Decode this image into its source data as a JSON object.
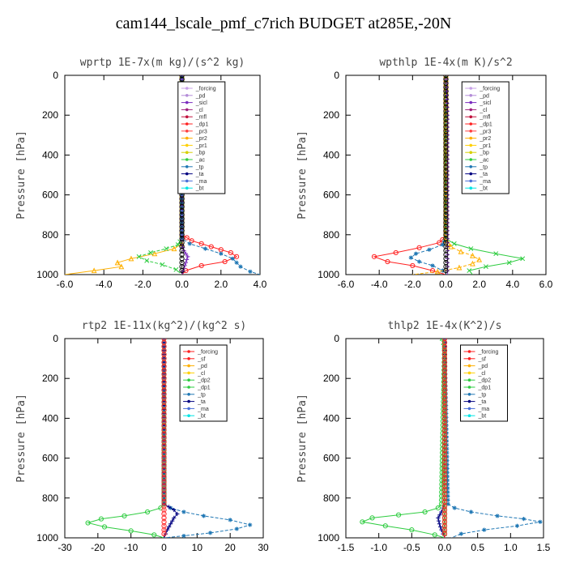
{
  "figure_title": "cam144_lscale_pmf_c7rich  BUDGET at285E,-20N",
  "chart_data": [
    {
      "type": "line",
      "title": "wprtp  1E-7x(m kg)/(s^2 kg)",
      "ylabel": "Pressure [hPa]",
      "xlim": [
        -6.0,
        4.0
      ],
      "ylim": [
        1000,
        0
      ],
      "xticks": [
        "-6.0",
        "-4.0",
        "-2.0",
        "0.0",
        "2.0",
        "4.0"
      ],
      "yticks": [
        "0",
        "200",
        "400",
        "600",
        "800",
        "1000"
      ],
      "legend": [
        "_forcing",
        "_pd",
        "_sicl",
        "_cl",
        "_mfl",
        "_dp1",
        "_pr3",
        "_pr2",
        "_pr1",
        "_bp",
        "_ac",
        "_tp",
        "_ta",
        "_ma",
        "_bt"
      ],
      "series": [
        {
          "color": "#ffb000",
          "marker": "^",
          "x": [
            0,
            0,
            0,
            -0.4,
            -1.4,
            -2.6,
            -3.3,
            -3.1,
            -4.5,
            -6.0
          ],
          "y": [
            0,
            820,
            845,
            870,
            895,
            920,
            940,
            960,
            980,
            1000
          ]
        },
        {
          "color": "#2ecc40",
          "marker": "x",
          "x": [
            0,
            0,
            -0.2,
            -0.8,
            -1.6,
            -2.2,
            -1.8,
            -1.0,
            -0.3,
            0
          ],
          "y": [
            0,
            820,
            850,
            870,
            890,
            910,
            930,
            950,
            975,
            1000
          ]
        },
        {
          "color": "#ff2020",
          "marker": "o",
          "x": [
            0,
            0,
            0.5,
            1.5,
            2.5,
            2.8,
            2.2,
            1.0,
            0.2,
            0
          ],
          "y": [
            0,
            800,
            830,
            860,
            890,
            910,
            935,
            955,
            980,
            1000
          ]
        },
        {
          "color": "#1f77b4",
          "marker": "*",
          "x": [
            0,
            0,
            0.4,
            1.2,
            2.0,
            2.6,
            2.8,
            3.0,
            3.5,
            4.0
          ],
          "y": [
            0,
            820,
            845,
            870,
            895,
            920,
            940,
            960,
            985,
            1000
          ]
        },
        {
          "color": "#7b2cbf",
          "marker": "+",
          "x": [
            0,
            0,
            0.1,
            0.3,
            0.2,
            0.1,
            0
          ],
          "y": [
            0,
            850,
            880,
            910,
            940,
            970,
            1000
          ]
        },
        {
          "color": "#000000",
          "marker": "o",
          "x": [
            0,
            0,
            0,
            0,
            0,
            0,
            0
          ],
          "y": [
            0,
            200,
            400,
            600,
            800,
            900,
            1000
          ]
        }
      ]
    },
    {
      "type": "line",
      "title": "wpthlp  1E-4x(m K)/s^2",
      "ylabel": "Pressure [hPa]",
      "xlim": [
        -6.0,
        6.0
      ],
      "ylim": [
        1000,
        0
      ],
      "xticks": [
        "-6.0",
        "-4.0",
        "-2.0",
        "0.0",
        "2.0",
        "4.0",
        "6.0"
      ],
      "yticks": [
        "0",
        "200",
        "400",
        "600",
        "800",
        "1000"
      ],
      "legend": [
        "_forcing",
        "_pd",
        "_sicl",
        "_cl",
        "_mfl",
        "_dp1",
        "_pr3",
        "_pr2",
        "_pr1",
        "_bp",
        "_ac",
        "_tp",
        "_ta",
        "_ma",
        "_bt"
      ],
      "series": [
        {
          "color": "#ff2020",
          "marker": "o",
          "x": [
            0,
            0,
            -0.4,
            -1.6,
            -3.0,
            -4.3,
            -3.5,
            -2.0,
            -0.8,
            0
          ],
          "y": [
            0,
            810,
            840,
            865,
            890,
            910,
            935,
            955,
            980,
            1000
          ]
        },
        {
          "color": "#1f77b4",
          "marker": "*",
          "x": [
            0,
            0,
            -0.2,
            -1.0,
            -1.8,
            -2.1,
            -1.6,
            -0.8,
            -0.2,
            0
          ],
          "y": [
            0,
            820,
            850,
            875,
            895,
            915,
            935,
            955,
            980,
            1000
          ]
        },
        {
          "color": "#2ecc40",
          "marker": "x",
          "x": [
            0,
            0,
            0.5,
            1.5,
            3.0,
            4.6,
            3.8,
            2.4,
            1.4,
            1.6
          ],
          "y": [
            0,
            820,
            845,
            870,
            895,
            920,
            940,
            960,
            980,
            1000
          ]
        },
        {
          "color": "#ffb000",
          "marker": "^",
          "x": [
            0,
            0,
            0.3,
            0.9,
            1.6,
            2.0,
            1.6,
            0.8,
            -0.5,
            -2.0
          ],
          "y": [
            0,
            830,
            860,
            885,
            905,
            925,
            945,
            965,
            985,
            1000
          ]
        },
        {
          "color": "#7b2cbf",
          "marker": "+",
          "x": [
            0,
            0.1,
            0.1,
            0.1,
            0.1
          ],
          "y": [
            0,
            200,
            500,
            800,
            1000
          ]
        },
        {
          "color": "#000000",
          "marker": "o",
          "x": [
            0,
            0,
            0,
            0,
            0
          ],
          "y": [
            0,
            200,
            500,
            800,
            1000
          ]
        }
      ]
    },
    {
      "type": "line",
      "title": "rtp2  1E-11x(kg^2)/(kg^2 s)",
      "ylabel": "Pressure [hPa]",
      "xlim": [
        -30,
        30
      ],
      "ylim": [
        1000,
        0
      ],
      "xticks": [
        "-30",
        "-20",
        "-10",
        "0",
        "10",
        "20",
        "30"
      ],
      "yticks": [
        "0",
        "200",
        "400",
        "600",
        "800",
        "1000"
      ],
      "legend": [
        "_forcing",
        "_sf",
        "_pd",
        "_cl",
        "_dp2",
        "_dp1",
        "_tp",
        "_ta",
        "_ma",
        "_bt"
      ],
      "series": [
        {
          "color": "#2ecc40",
          "marker": "o",
          "x": [
            0,
            0,
            -1,
            -5,
            -12,
            -19,
            -23,
            -18,
            -10,
            -3,
            0
          ],
          "y": [
            0,
            830,
            850,
            870,
            890,
            905,
            925,
            945,
            965,
            985,
            1000
          ]
        },
        {
          "color": "#1f77b4",
          "marker": "*",
          "x": [
            0,
            0,
            2,
            6,
            12,
            20,
            26,
            22,
            14,
            6,
            0
          ],
          "y": [
            0,
            830,
            850,
            870,
            890,
            910,
            935,
            955,
            975,
            990,
            1000
          ]
        },
        {
          "color": "#000080",
          "marker": "+",
          "x": [
            0,
            0,
            3,
            4,
            3,
            2,
            1,
            0
          ],
          "y": [
            0,
            830,
            860,
            880,
            900,
            930,
            960,
            1000
          ]
        },
        {
          "color": "#ff2020",
          "marker": "o",
          "x": [
            0,
            0,
            0,
            0,
            0,
            0,
            0
          ],
          "y": [
            0,
            200,
            400,
            600,
            800,
            900,
            1000
          ]
        }
      ]
    },
    {
      "type": "line",
      "title": "thlp2  1E-4x(K^2)/s",
      "ylabel": "Pressure [hPa]",
      "xlim": [
        -1.5,
        1.5
      ],
      "ylim": [
        1000,
        0
      ],
      "xticks": [
        "-1.5",
        "-1.0",
        "-0.5",
        "0.0",
        "0.5",
        "1.0",
        "1.5"
      ],
      "yticks": [
        "0",
        "200",
        "400",
        "600",
        "800",
        "1000"
      ],
      "legend": [
        "_forcing",
        "_sf",
        "_pd",
        "_cl",
        "_dp2",
        "_dp1",
        "_tp",
        "_ta",
        "_ma",
        "_bt"
      ],
      "series": [
        {
          "color": "#2ecc40",
          "marker": "o",
          "x": [
            0,
            -0.05,
            -0.1,
            -0.3,
            -0.7,
            -1.1,
            -1.25,
            -0.9,
            -0.5,
            -0.15,
            0
          ],
          "y": [
            0,
            830,
            850,
            870,
            885,
            900,
            920,
            940,
            960,
            985,
            1000
          ]
        },
        {
          "color": "#1f77b4",
          "marker": "*",
          "x": [
            0,
            0.05,
            0.15,
            0.4,
            0.8,
            1.2,
            1.45,
            1.1,
            0.6,
            0.25,
            0.1
          ],
          "y": [
            0,
            830,
            850,
            870,
            890,
            905,
            920,
            940,
            960,
            980,
            1000
          ]
        },
        {
          "color": "#000080",
          "marker": "+",
          "x": [
            0,
            0,
            -0.05,
            -0.1,
            -0.08,
            -0.05,
            0
          ],
          "y": [
            0,
            830,
            870,
            900,
            930,
            960,
            1000
          ]
        },
        {
          "color": "#2ecc40",
          "marker": "x",
          "x": [
            -0.04,
            -0.02,
            0,
            0
          ],
          "y": [
            0,
            20,
            60,
            1000
          ]
        },
        {
          "color": "#ff2020",
          "marker": "o",
          "x": [
            0,
            0,
            0,
            0,
            0,
            0,
            0
          ],
          "y": [
            0,
            200,
            400,
            600,
            800,
            900,
            1000
          ]
        }
      ]
    }
  ],
  "legend_colors": {
    "_forcing": "#c8a2e8",
    "_pd": "#b48cd8",
    "_sicl": "#7b2cbf",
    "_cl": "#a0207c",
    "_mfl": "#c0103c",
    "_dp1": "#ff2020",
    "_pr3": "#ff4040",
    "_pr2": "#ffb000",
    "_pr1": "#ffd000",
    "_bp": "#d6d000",
    "_ac": "#2ecc40",
    "_tp": "#1f77b4",
    "_ta": "#000080",
    "_ma": "#4a6fd8",
    "_bt": "#00e5e5",
    "_sf": "#ff2020",
    "_dp2": "#2ecc40"
  },
  "legend_colors_lower": {
    "_forcing": "#ff2020",
    "_sf": "#ff2020",
    "_pd": "#ffb000",
    "_cl": "#ffd000",
    "_dp2": "#2ecc40",
    "_dp1": "#2ecc40",
    "_tp": "#1f77b4",
    "_ta": "#000080",
    "_ma": "#4a6fd8",
    "_bt": "#00e5e5"
  }
}
